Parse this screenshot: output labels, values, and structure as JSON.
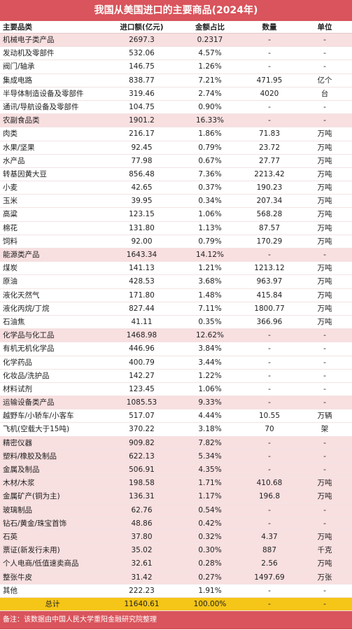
{
  "title": "我国从美国进口的主要商品(2024年)",
  "table": {
    "header": [
      "主要品类",
      "进口额(亿元)",
      "金额占比",
      "数量",
      "单位"
    ],
    "rows": [
      {
        "cells": [
          "机械电子类产品",
          "2697.3",
          "0.2317",
          "-",
          "-"
        ],
        "shade": "pink"
      },
      {
        "cells": [
          "发动机及零部件",
          "532.06",
          "4.57%",
          "-",
          "-"
        ]
      },
      {
        "cells": [
          "阀门/轴承",
          "146.75",
          "1.26%",
          "-",
          "-"
        ]
      },
      {
        "cells": [
          "集成电路",
          "838.77",
          "7.21%",
          "471.95",
          "亿个"
        ]
      },
      {
        "cells": [
          "半导体制造设备及零部件",
          "319.46",
          "2.74%",
          "4020",
          "台"
        ]
      },
      {
        "cells": [
          "通讯/导航设备及零部件",
          "104.75",
          "0.90%",
          "-",
          "-"
        ]
      },
      {
        "cells": [
          "农副食品类",
          "1901.2",
          "16.33%",
          "-",
          "-"
        ],
        "shade": "pink"
      },
      {
        "cells": [
          "肉类",
          "216.17",
          "1.86%",
          "71.83",
          "万吨"
        ]
      },
      {
        "cells": [
          "水果/坚果",
          "92.45",
          "0.79%",
          "23.72",
          "万吨"
        ]
      },
      {
        "cells": [
          "水产品",
          "77.98",
          "0.67%",
          "27.77",
          "万吨"
        ]
      },
      {
        "cells": [
          "转基因黄大豆",
          "856.48",
          "7.36%",
          "2213.42",
          "万吨"
        ]
      },
      {
        "cells": [
          "小麦",
          "42.65",
          "0.37%",
          "190.23",
          "万吨"
        ]
      },
      {
        "cells": [
          "玉米",
          "39.95",
          "0.34%",
          "207.34",
          "万吨"
        ]
      },
      {
        "cells": [
          "高粱",
          "123.15",
          "1.06%",
          "568.28",
          "万吨"
        ]
      },
      {
        "cells": [
          "棉花",
          "131.80",
          "1.13%",
          "87.57",
          "万吨"
        ]
      },
      {
        "cells": [
          "饲料",
          "92.00",
          "0.79%",
          "170.29",
          "万吨"
        ]
      },
      {
        "cells": [
          "能源类产品",
          "1643.34",
          "14.12%",
          "-",
          "-"
        ],
        "shade": "pink"
      },
      {
        "cells": [
          "煤炭",
          "141.13",
          "1.21%",
          "1213.12",
          "万吨"
        ]
      },
      {
        "cells": [
          "原油",
          "428.53",
          "3.68%",
          "963.97",
          "万吨"
        ]
      },
      {
        "cells": [
          "液化天然气",
          "171.80",
          "1.48%",
          "415.84",
          "万吨"
        ]
      },
      {
        "cells": [
          "液化丙烷/丁烷",
          "827.44",
          "7.11%",
          "1800.77",
          "万吨"
        ]
      },
      {
        "cells": [
          "石油焦",
          "41.11",
          "0.35%",
          "366.96",
          "万吨"
        ]
      },
      {
        "cells": [
          "化学品与化工品",
          "1468.98",
          "12.62%",
          "-",
          "-"
        ],
        "shade": "pink"
      },
      {
        "cells": [
          "有机无机化学品",
          "446.96",
          "3.84%",
          "-",
          "-"
        ]
      },
      {
        "cells": [
          "化学药品",
          "400.79",
          "3.44%",
          "-",
          "-"
        ]
      },
      {
        "cells": [
          "化妆品/洗护品",
          "142.27",
          "1.22%",
          "-",
          "-"
        ]
      },
      {
        "cells": [
          "材料试剂",
          "123.45",
          "1.06%",
          "-",
          "-"
        ]
      },
      {
        "cells": [
          "运输设备类产品",
          "1085.53",
          "9.33%",
          "-",
          "-"
        ],
        "shade": "pink"
      },
      {
        "cells": [
          "越野车/小轿车/小客车",
          "517.07",
          "4.44%",
          "10.55",
          "万辆"
        ]
      },
      {
        "cells": [
          "飞机(空载大于15吨)",
          "370.22",
          "3.18%",
          "70",
          "架"
        ]
      },
      {
        "cells": [
          "精密仪器",
          "909.82",
          "7.82%",
          "-",
          "-"
        ],
        "shade": "pink"
      },
      {
        "cells": [
          "塑料/橡胶及制品",
          "622.13",
          "5.34%",
          "-",
          "-"
        ],
        "shade": "pink"
      },
      {
        "cells": [
          "金属及制品",
          "506.91",
          "4.35%",
          "-",
          "-"
        ],
        "shade": "pink"
      },
      {
        "cells": [
          "木材/木浆",
          "198.58",
          "1.71%",
          "410.68",
          "万吨"
        ],
        "shade": "pink"
      },
      {
        "cells": [
          "金属矿产(铜为主)",
          "136.31",
          "1.17%",
          "196.8",
          "万吨"
        ],
        "shade": "pink"
      },
      {
        "cells": [
          "玻璃制品",
          "62.76",
          "0.54%",
          "-",
          "-"
        ],
        "shade": "pink"
      },
      {
        "cells": [
          "钻石/黄金/珠宝首饰",
          "48.86",
          "0.42%",
          "-",
          "-"
        ],
        "shade": "pink"
      },
      {
        "cells": [
          "石英",
          "37.80",
          "0.32%",
          "4.37",
          "万吨"
        ],
        "shade": "pink"
      },
      {
        "cells": [
          "票证(新发行未用)",
          "35.02",
          "0.30%",
          "887",
          "千克"
        ],
        "shade": "pink"
      },
      {
        "cells": [
          "个人电商/低值速卖商品",
          "32.61",
          "0.28%",
          "2.56",
          "万吨"
        ],
        "shade": "pink"
      },
      {
        "cells": [
          "整张牛皮",
          "31.42",
          "0.27%",
          "1497.69",
          "万张"
        ],
        "shade": "pink"
      },
      {
        "cells": [
          "其他",
          "222.23",
          "1.91%",
          "-",
          "-"
        ]
      },
      {
        "cells": [
          "总计",
          "11640.61",
          "100.00%",
          "-",
          "-"
        ],
        "shade": "yellow"
      }
    ]
  },
  "note": "备注：该数据由中国人民大学重阳金融研究院整理"
}
